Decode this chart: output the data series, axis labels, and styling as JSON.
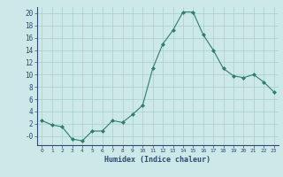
{
  "x": [
    0,
    1,
    2,
    3,
    4,
    5,
    6,
    7,
    8,
    9,
    10,
    11,
    12,
    13,
    14,
    15,
    16,
    17,
    18,
    19,
    20,
    21,
    22,
    23
  ],
  "y": [
    2.5,
    1.8,
    1.5,
    -0.5,
    -0.8,
    0.8,
    0.8,
    2.5,
    2.2,
    3.5,
    5.0,
    11.0,
    15.0,
    17.2,
    20.2,
    20.2,
    16.5,
    14.0,
    11.0,
    9.8,
    9.5,
    10.0,
    8.8,
    7.2
  ],
  "line_color": "#2e7d6e",
  "marker": "D",
  "marker_size": 2.0,
  "bg_color": "#cce8e8",
  "grid_color": "#aacece",
  "xlabel": "Humidex (Indice chaleur)",
  "ylim": [
    -1.5,
    21
  ],
  "xlim": [
    -0.5,
    23.5
  ],
  "yticks": [
    0,
    2,
    4,
    6,
    8,
    10,
    12,
    14,
    16,
    18,
    20
  ],
  "ytick_labels": [
    "-0",
    "2",
    "4",
    "6",
    "8",
    "10",
    "12",
    "14",
    "16",
    "18",
    "20"
  ],
  "xticks": [
    0,
    1,
    2,
    3,
    4,
    5,
    6,
    7,
    8,
    9,
    10,
    11,
    12,
    13,
    14,
    15,
    16,
    17,
    18,
    19,
    20,
    21,
    22,
    23
  ]
}
